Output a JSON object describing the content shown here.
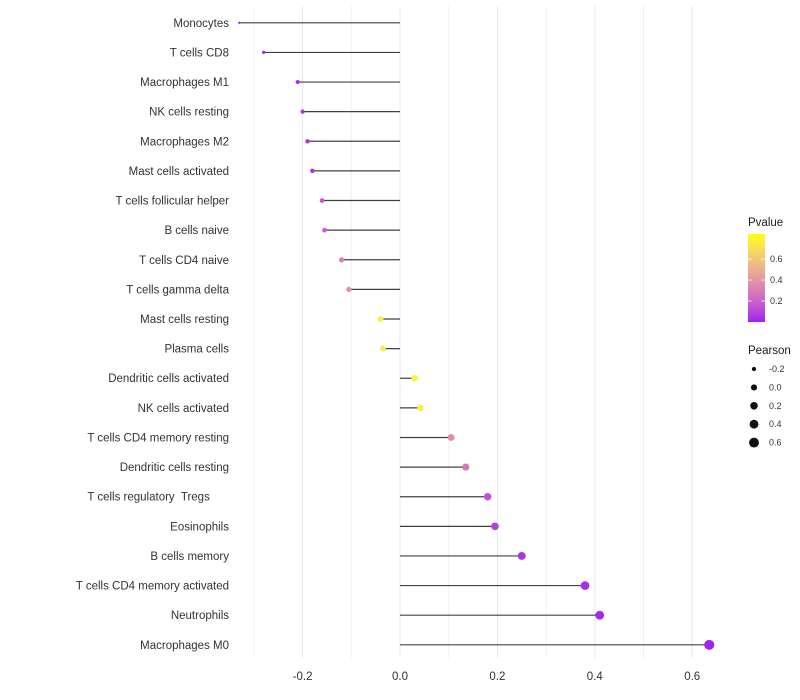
{
  "figure": {
    "background": "#ffffff",
    "text_color": "#333333",
    "stem_color": "#404040"
  },
  "chart_data": {
    "type": "lollipop",
    "orientation": "horizontal",
    "title": "",
    "xlabel": "",
    "ylabel": "",
    "xlim": [
      -0.335,
      0.68
    ],
    "grid": "vertical-only",
    "grid_major": [
      -0.2,
      0.0,
      0.2,
      0.4,
      0.6
    ],
    "grid_minor": [
      -0.3,
      -0.1,
      0.1,
      0.3,
      0.5
    ],
    "x_ticks": [
      -0.2,
      0.0,
      0.2,
      0.4,
      0.6
    ],
    "x_tick_labels": [
      "-0.2",
      "0.0",
      "0.2",
      "0.4",
      "0.6"
    ],
    "points": [
      {
        "label": "Monocytes",
        "pearson": -0.33,
        "pvalue": 0.01
      },
      {
        "label": "T cells CD8",
        "pearson": -0.28,
        "pvalue": 0.02
      },
      {
        "label": "Macrophages M1",
        "pearson": -0.21,
        "pvalue": 0.03
      },
      {
        "label": "NK cells resting",
        "pearson": -0.2,
        "pvalue": 0.04
      },
      {
        "label": "Macrophages M2",
        "pearson": -0.19,
        "pvalue": 0.04
      },
      {
        "label": "Mast cells activated",
        "pearson": -0.18,
        "pvalue": 0.05
      },
      {
        "label": "T cells follicular helper",
        "pearson": -0.16,
        "pvalue": 0.17
      },
      {
        "label": "B cells naive",
        "pearson": -0.155,
        "pvalue": 0.18
      },
      {
        "label": "T cells CD4 naive",
        "pearson": -0.12,
        "pvalue": 0.3
      },
      {
        "label": "T cells gamma delta",
        "pearson": -0.105,
        "pvalue": 0.38
      },
      {
        "label": "Mast cells resting",
        "pearson": -0.04,
        "pvalue": 0.76
      },
      {
        "label": "Plasma cells",
        "pearson": -0.035,
        "pvalue": 0.75
      },
      {
        "label": "Dendritic cells activated",
        "pearson": 0.03,
        "pvalue": 0.79
      },
      {
        "label": "NK cells activated",
        "pearson": 0.042,
        "pvalue": 0.77
      },
      {
        "label": "T cells CD4 memory resting",
        "pearson": 0.105,
        "pvalue": 0.37
      },
      {
        "label": "Dendritic cells resting",
        "pearson": 0.135,
        "pvalue": 0.28
      },
      {
        "label": "T cells regulatory  Tregs      ",
        "pearson": 0.18,
        "pvalue": 0.14
      },
      {
        "label": "Eosinophils",
        "pearson": 0.195,
        "pvalue": 0.08
      },
      {
        "label": "B cells memory",
        "pearson": 0.25,
        "pvalue": 0.05
      },
      {
        "label": "T cells CD4 memory activated",
        "pearson": 0.38,
        "pvalue": 0.03
      },
      {
        "label": "Neutrophils",
        "pearson": 0.41,
        "pvalue": 0.02
      },
      {
        "label": "Macrophages M0",
        "pearson": 0.635,
        "pvalue": 0.005
      }
    ],
    "color_scale": {
      "title": "Pvalue",
      "low_color": "#A020F0",
      "high_color": "#FFFF00",
      "domain": [
        0,
        0.84
      ],
      "ticks": [
        0.2,
        0.4,
        0.6
      ],
      "tick_labels": [
        "0.2",
        "0.4",
        "0.6"
      ],
      "interpolation": "lab",
      "legend_position": "right"
    },
    "size_scale": {
      "title": "Pearson",
      "ticks": [
        -0.2,
        0.0,
        0.2,
        0.4,
        0.6
      ],
      "tick_labels": [
        "-0.2",
        "0.0",
        "0.2",
        "0.4",
        "0.6"
      ],
      "dot_color": "#111111",
      "legend_position": "right"
    }
  }
}
